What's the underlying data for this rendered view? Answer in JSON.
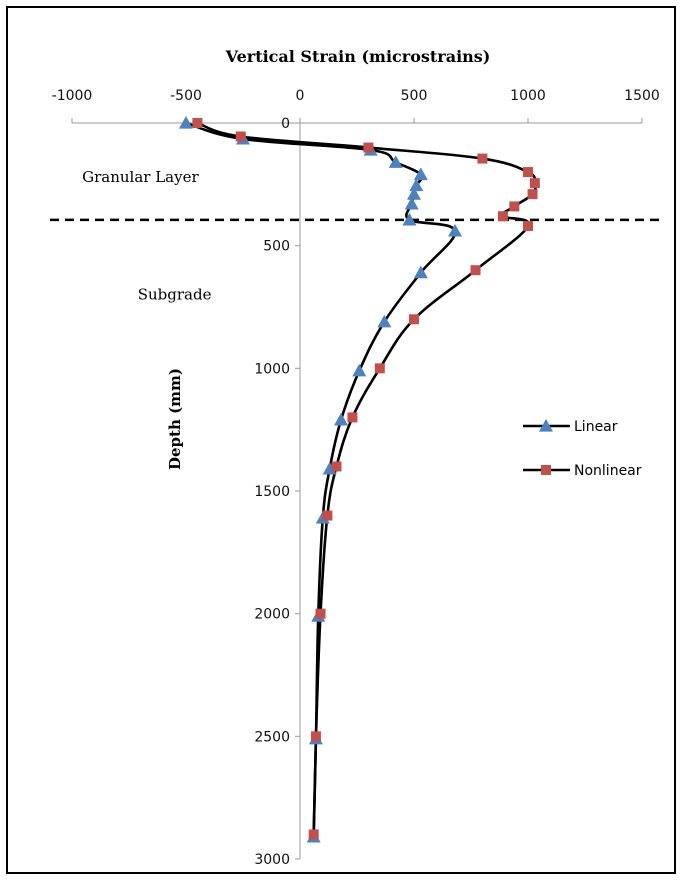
{
  "chart_data": {
    "type": "line",
    "title": "Vertical Strain (microstrains)",
    "ylabel": "Depth (mm)",
    "xlim": [
      -1000,
      1500
    ],
    "ylim": [
      0,
      3000
    ],
    "x_ticks": [
      -1000,
      -500,
      0,
      500,
      1000,
      1500
    ],
    "y_ticks": [
      0,
      500,
      1000,
      1500,
      2000,
      2500,
      3000
    ],
    "x_tick_labels": [
      "-1000",
      "-500",
      "0",
      "500",
      "1000",
      "1500"
    ],
    "y_tick_labels": [
      "0",
      "500",
      "1000",
      "1500",
      "2000",
      "2500",
      "3000"
    ],
    "y_inverted": true,
    "x_axis_position": "top",
    "grid": false,
    "legend_position": "right",
    "series": [
      {
        "name": "Linear",
        "marker": "triangle",
        "color": "#4f81bd",
        "points": [
          [
            -500,
            0
          ],
          [
            -250,
            65
          ],
          [
            310,
            110
          ],
          [
            420,
            160
          ],
          [
            530,
            210
          ],
          [
            510,
            255
          ],
          [
            500,
            290
          ],
          [
            490,
            330
          ],
          [
            480,
            395
          ],
          [
            680,
            440
          ],
          [
            530,
            610
          ],
          [
            370,
            810
          ],
          [
            260,
            1010
          ],
          [
            180,
            1210
          ],
          [
            130,
            1410
          ],
          [
            100,
            1610
          ],
          [
            80,
            2010
          ],
          [
            70,
            2510
          ],
          [
            60,
            2910
          ]
        ]
      },
      {
        "name": "Nonlinear",
        "marker": "square",
        "color": "#c0504d",
        "points": [
          [
            -450,
            0
          ],
          [
            -260,
            55
          ],
          [
            300,
            100
          ],
          [
            800,
            145
          ],
          [
            1000,
            200
          ],
          [
            1030,
            245
          ],
          [
            1020,
            290
          ],
          [
            940,
            340
          ],
          [
            890,
            380
          ],
          [
            1000,
            420
          ],
          [
            770,
            600
          ],
          [
            500,
            800
          ],
          [
            350,
            1000
          ],
          [
            230,
            1200
          ],
          [
            160,
            1400
          ],
          [
            120,
            1600
          ],
          [
            90,
            2000
          ],
          [
            70,
            2500
          ],
          [
            60,
            2900
          ]
        ]
      }
    ],
    "annotations": [
      {
        "text": "Granular  Layer",
        "x": -700,
        "y": 240
      },
      {
        "text": "Subgrade",
        "x": -550,
        "y": 720
      }
    ],
    "reference_line": {
      "y": 395,
      "style": "dashed"
    }
  }
}
